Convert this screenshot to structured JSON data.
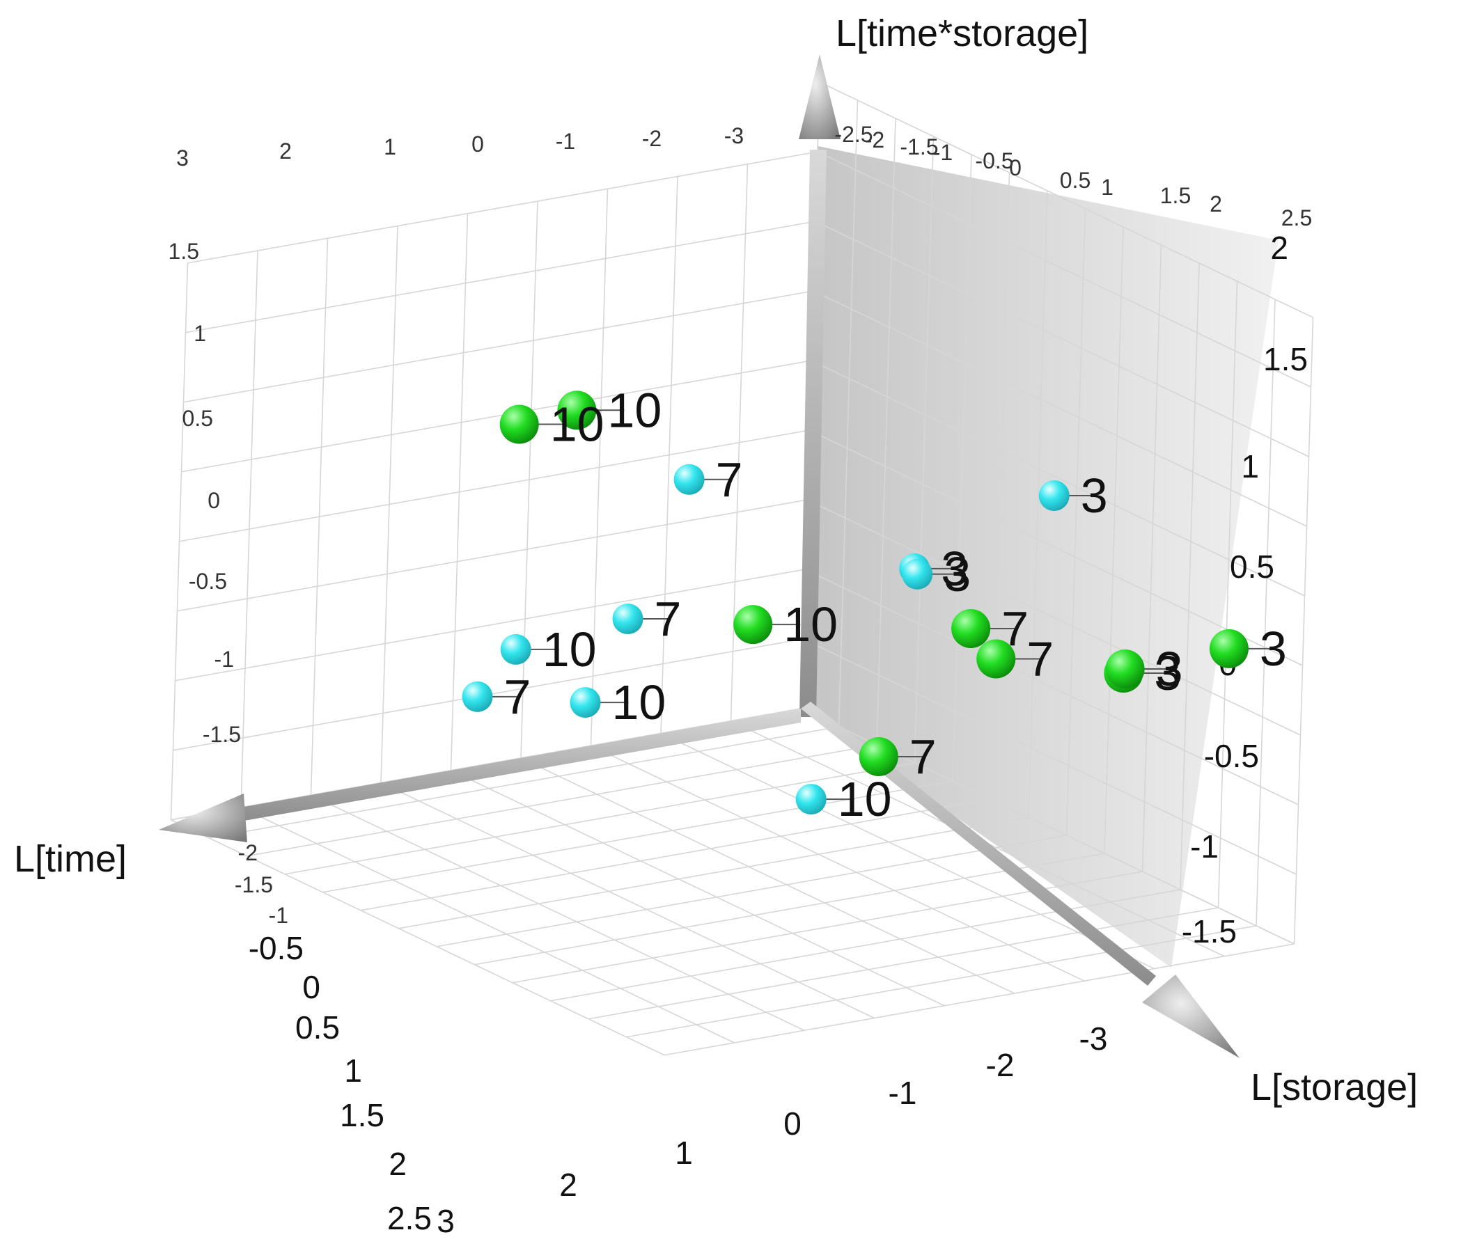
{
  "chart_data": {
    "type": "scatter",
    "projection": "3d",
    "axes": {
      "x": {
        "title": "L[time]"
      },
      "y": {
        "title": "L[storage]"
      },
      "z": {
        "title": "L[time*storage]"
      }
    },
    "ticks": {
      "back_top": [
        "3",
        "2",
        "1",
        "0",
        "-1",
        "-2",
        "-3"
      ],
      "back_left": [
        "1.5",
        "1",
        "0.5",
        "0",
        "-0.5",
        "-1",
        "-1.5"
      ],
      "side_top": [
        "-2.5",
        "-2",
        "-1.5",
        "-1",
        "-0.5",
        "0",
        "0.5",
        "1",
        "1.5",
        "2",
        "2.5"
      ],
      "side_right": [
        "2",
        "1.5",
        "1",
        "0.5",
        "0",
        "-0.5",
        "-1",
        "-1.5"
      ],
      "floor_left": [
        "-2",
        "-1.5",
        "-1",
        "-0.5",
        "0",
        "0.5",
        "1",
        "1.5",
        "2",
        "2.5"
      ],
      "floor_front": [
        "3",
        "2",
        "1",
        "0",
        "-1",
        "-2",
        "-3"
      ]
    },
    "series": [
      {
        "color": "#22dd22",
        "points": [
          {
            "label": "10",
            "x": 1.3,
            "y": 0.8,
            "z": 1.2
          },
          {
            "label": "10",
            "x": 1.0,
            "y": 0.6,
            "z": 1.3
          },
          {
            "label": "10",
            "x": -0.2,
            "y": 0.4,
            "z": -0.4
          },
          {
            "label": "7",
            "x": -0.8,
            "y": -0.2,
            "z": -1.3
          },
          {
            "label": "7",
            "x": -1.4,
            "y": -0.6,
            "z": -0.6
          },
          {
            "label": "7",
            "x": -1.6,
            "y": 0.1,
            "z": -0.6
          },
          {
            "label": "3",
            "x": -1.8,
            "y": -2.9,
            "z": 0.0
          },
          {
            "label": "3",
            "x": -1.5,
            "y": -2.1,
            "z": -0.3
          },
          {
            "label": "3",
            "x": -1.6,
            "y": -1.9,
            "z": -0.4
          }
        ]
      },
      {
        "color": "#33e6ee",
        "points": [
          {
            "label": "3",
            "x": -0.4,
            "y": -3.1,
            "z": 1.4
          },
          {
            "label": "3",
            "x": 0.2,
            "y": -2.4,
            "z": 0.8
          },
          {
            "label": "3",
            "x": 0.4,
            "y": -2.8,
            "z": 0.9
          },
          {
            "label": "7",
            "x": 0.4,
            "y": 0.2,
            "z": 0.8
          },
          {
            "label": "7",
            "x": 0.7,
            "y": 0.4,
            "z": -0.2
          },
          {
            "label": "7",
            "x": 1.1,
            "y": 1.6,
            "z": -1.0
          },
          {
            "label": "10",
            "x": 1.0,
            "y": 1.3,
            "z": -0.6
          },
          {
            "label": "10",
            "x": 0.6,
            "y": 1.1,
            "z": -1.0
          },
          {
            "label": "10",
            "x": -0.6,
            "y": 0.3,
            "z": -1.7
          }
        ]
      }
    ]
  }
}
